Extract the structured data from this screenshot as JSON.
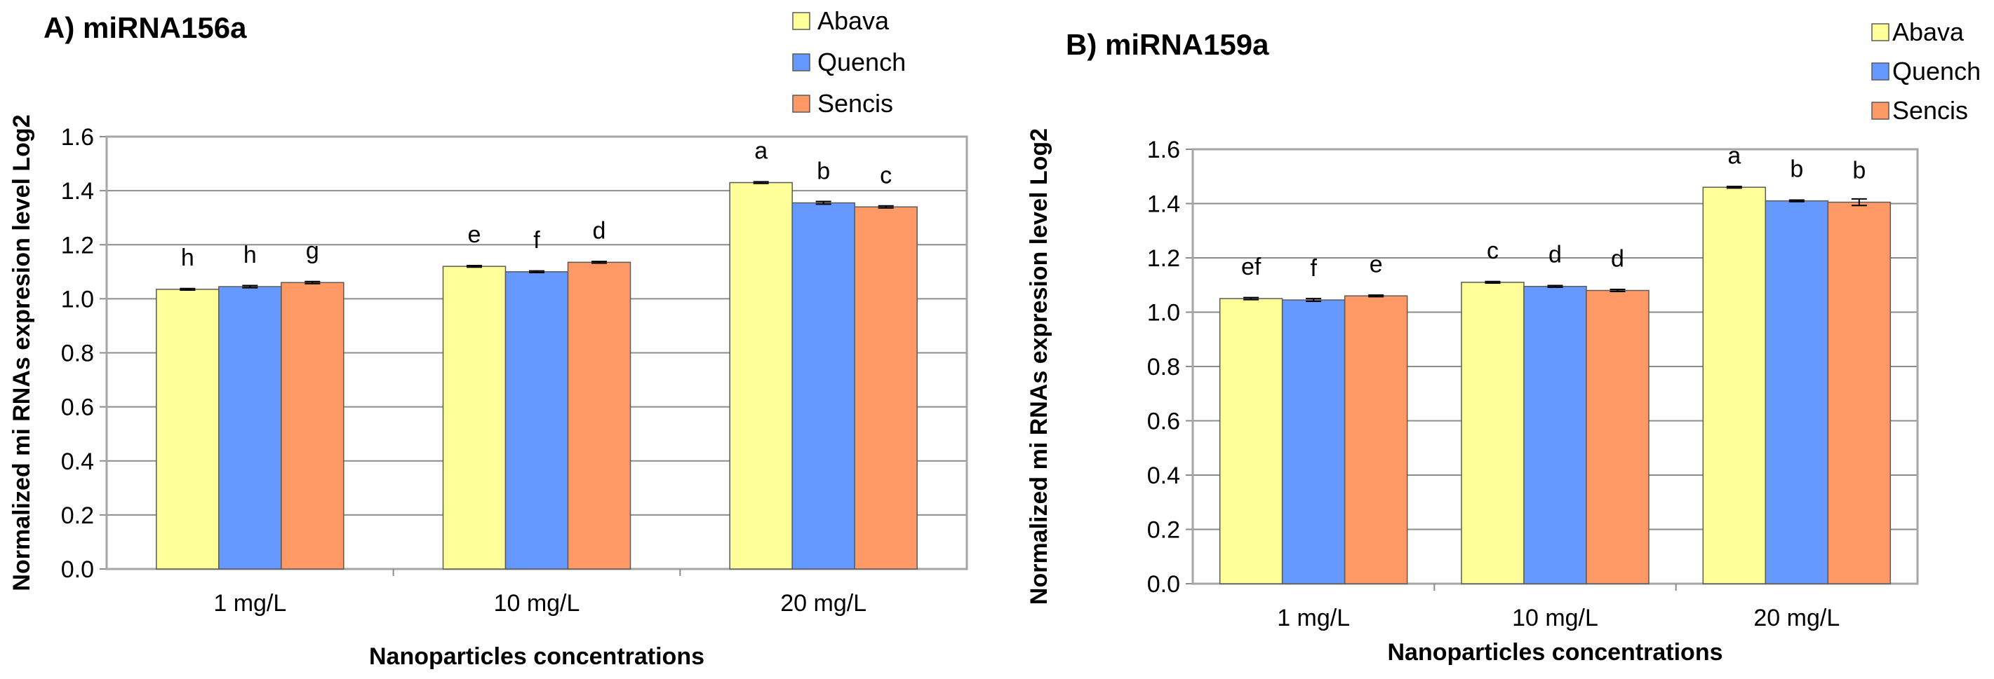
{
  "chart_data": [
    {
      "type": "bar",
      "title": "A) miRNA156a",
      "xlabel": "Nanoparticles concentrations",
      "ylabel": "Normalized mi RNAs expresion level Log2",
      "ylim": [
        0,
        1.6
      ],
      "yticks": [
        "0.0",
        "0.2",
        "0.4",
        "0.6",
        "0.8",
        "1.0",
        "1.2",
        "1.4",
        "1.6"
      ],
      "grid": true,
      "legend_position": "top-right",
      "categories": [
        "1 mg/L",
        "10 mg/L",
        "20 mg/L"
      ],
      "series": [
        {
          "name": "Abava",
          "color": "#FFFF99",
          "values": [
            1.035,
            1.12,
            1.43
          ],
          "errors": [
            0.003,
            0.003,
            0.003
          ],
          "labels": [
            "h",
            "e",
            "a"
          ]
        },
        {
          "name": "Quench",
          "color": "#6699FF",
          "values": [
            1.045,
            1.1,
            1.355
          ],
          "errors": [
            0.004,
            0.003,
            0.005
          ],
          "labels": [
            "h",
            "f",
            "b"
          ]
        },
        {
          "name": "Sencis",
          "color": "#FF9966",
          "values": [
            1.06,
            1.135,
            1.34
          ],
          "errors": [
            0.004,
            0.003,
            0.004
          ],
          "labels": [
            "g",
            "d",
            "c"
          ]
        }
      ]
    },
    {
      "type": "bar",
      "title": "B) miRNA159a",
      "xlabel": "Nanoparticles concentrations",
      "ylabel": "Normalized mi RNAs expresion level Log2",
      "ylim": [
        0,
        1.6
      ],
      "yticks": [
        "0.0",
        "0.2",
        "0.4",
        "0.6",
        "0.8",
        "1.0",
        "1.2",
        "1.4",
        "1.6"
      ],
      "grid": true,
      "legend_position": "top-right",
      "categories": [
        "1 mg/L",
        "10 mg/L",
        "20 mg/L"
      ],
      "series": [
        {
          "name": "Abava",
          "color": "#FFFF99",
          "values": [
            1.05,
            1.11,
            1.46
          ],
          "errors": [
            0.004,
            0.003,
            0.003
          ],
          "labels": [
            "ef",
            "c",
            "a"
          ]
        },
        {
          "name": "Quench",
          "color": "#6699FF",
          "values": [
            1.045,
            1.095,
            1.41
          ],
          "errors": [
            0.005,
            0.003,
            0.003
          ],
          "labels": [
            "f",
            "d",
            "b"
          ]
        },
        {
          "name": "Sencis",
          "color": "#FF9966",
          "values": [
            1.06,
            1.08,
            1.405
          ],
          "errors": [
            0.003,
            0.004,
            0.012
          ],
          "labels": [
            "e",
            "d",
            "b"
          ]
        }
      ]
    }
  ]
}
